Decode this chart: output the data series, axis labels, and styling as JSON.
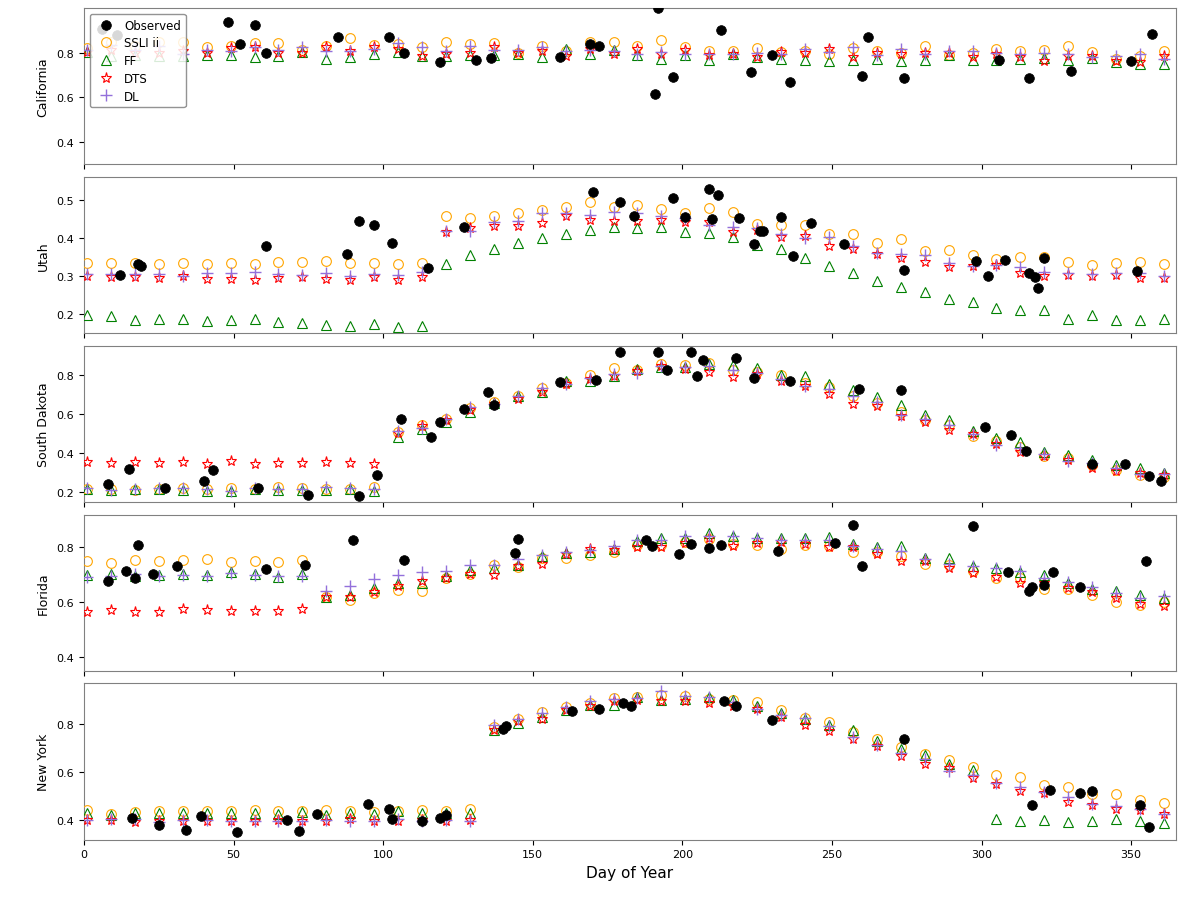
{
  "regions": [
    "California",
    "Utah",
    "South Dakota",
    "Florida",
    "New York"
  ],
  "series_labels": [
    "Observed",
    "SSLI ii",
    "FF",
    "DTS",
    "DL"
  ],
  "series_colors": [
    "black",
    "orange",
    "green",
    "red",
    "mediumpurple"
  ],
  "series_markers": [
    "o",
    "o",
    "^",
    "*",
    "+"
  ],
  "series_markersize": [
    7,
    7,
    7,
    8,
    8
  ],
  "xlabel": "Day of Year",
  "background_color": "white"
}
